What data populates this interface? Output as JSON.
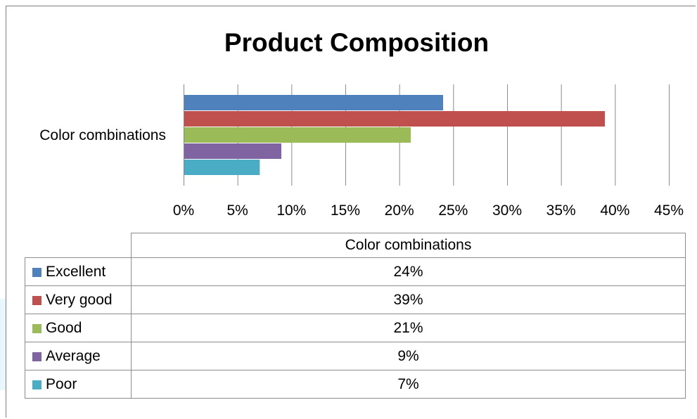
{
  "chart_data": {
    "type": "bar",
    "orientation": "horizontal",
    "title": "Product Composition",
    "categories": [
      "Color combinations"
    ],
    "series": [
      {
        "name": "Excellent",
        "values": [
          24
        ],
        "label": "24%",
        "color": "#4f81bd"
      },
      {
        "name": "Very good",
        "values": [
          39
        ],
        "label": "39%",
        "color": "#c0504d"
      },
      {
        "name": "Good",
        "values": [
          21
        ],
        "label": "21%",
        "color": "#9bbb59"
      },
      {
        "name": "Average",
        "values": [
          9
        ],
        "label": "9%",
        "color": "#8064a2"
      },
      {
        "name": "Poor",
        "values": [
          7
        ],
        "label": "7%",
        "color": "#4bacc6"
      }
    ],
    "xlim": [
      0,
      45
    ],
    "xticks": [
      "0%",
      "5%",
      "10%",
      "15%",
      "20%",
      "25%",
      "30%",
      "35%",
      "40%",
      "45%"
    ],
    "grid": true,
    "legend": "data-table-below"
  },
  "table": {
    "column_header": "Color combinations"
  }
}
